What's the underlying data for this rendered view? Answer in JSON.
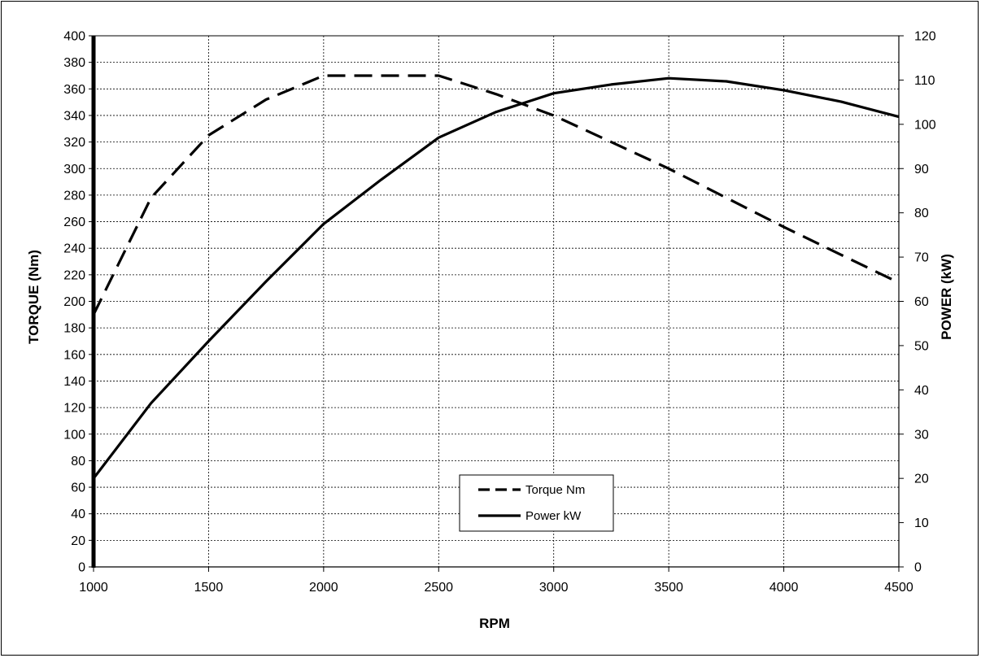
{
  "chart_data": {
    "type": "line",
    "xlabel": "RPM",
    "ylabel": "TORQUE (Nm)",
    "y2label": "POWER (kW)",
    "xlim": [
      1000,
      4500
    ],
    "ylim": [
      0,
      400
    ],
    "y2lim": [
      0,
      120
    ],
    "xticks": [
      1000,
      1500,
      2000,
      2500,
      3000,
      3500,
      4000,
      4500
    ],
    "yticks": [
      0,
      20,
      40,
      60,
      80,
      100,
      120,
      140,
      160,
      180,
      200,
      220,
      240,
      260,
      280,
      300,
      320,
      340,
      360,
      380,
      400
    ],
    "y2ticks": [
      0,
      10,
      20,
      30,
      40,
      50,
      60,
      70,
      80,
      90,
      100,
      110,
      120
    ],
    "grid": true,
    "legend_position": "bottom-center",
    "series": [
      {
        "name": "Torque Nm",
        "axis": "left",
        "style": "dashed",
        "color": "#000000",
        "x": [
          1000,
          1250,
          1500,
          1750,
          2000,
          2250,
          2500,
          2750,
          3000,
          3250,
          3500,
          3750,
          4000,
          4250,
          4500
        ],
        "values": [
          190,
          278,
          325,
          352,
          370,
          370,
          370,
          356,
          340,
          320,
          300,
          278,
          256,
          235,
          214
        ]
      },
      {
        "name": "Power kW",
        "axis": "right",
        "style": "solid",
        "color": "#000000",
        "x": [
          1000,
          1250,
          1500,
          1750,
          2000,
          2250,
          2500,
          2750,
          3000,
          3250,
          3500,
          3750,
          4000,
          4250,
          4500
        ],
        "values": [
          20,
          37,
          51,
          64.5,
          77.5,
          87.5,
          97,
          102.8,
          107,
          109,
          110.4,
          109.7,
          107.7,
          105.1,
          101.7
        ]
      }
    ]
  }
}
